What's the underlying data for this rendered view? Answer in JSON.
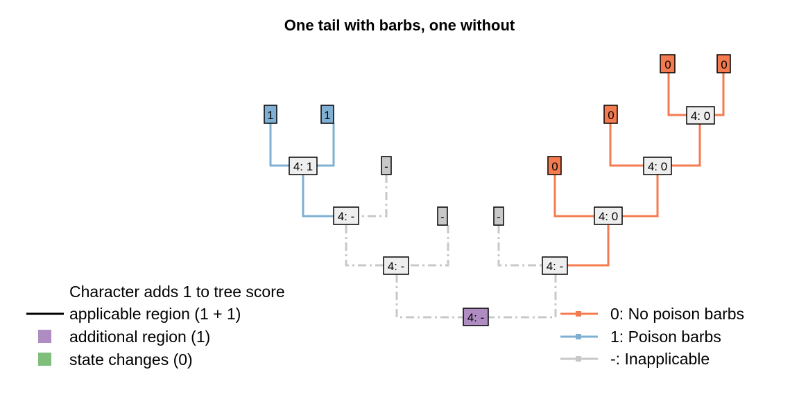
{
  "title": "One tail with barbs, one without",
  "colors": {
    "state0": "#F47B4F",
    "state1": "#7FB0D3",
    "inapplicable": "#C8C8C8",
    "node_fill": "#EEEEEE",
    "additional_region": "#AF8DC3",
    "state_changes": "#7FBF7B",
    "applicable_line": "#000000"
  },
  "tips": [
    {
      "id": "t1",
      "label": "1",
      "state": "1"
    },
    {
      "id": "t2",
      "label": "1",
      "state": "1"
    },
    {
      "id": "t3",
      "label": "-",
      "state": "-"
    },
    {
      "id": "t4",
      "label": "-",
      "state": "-"
    },
    {
      "id": "t5",
      "label": "-",
      "state": "-"
    },
    {
      "id": "t6",
      "label": "0",
      "state": "0"
    },
    {
      "id": "t7",
      "label": "0",
      "state": "0"
    },
    {
      "id": "t8",
      "label": "0",
      "state": "0"
    },
    {
      "id": "t9",
      "label": "0",
      "state": "0"
    }
  ],
  "internal_nodes": [
    {
      "id": "n_a",
      "label": "4: 1"
    },
    {
      "id": "n_b",
      "label": "4: -"
    },
    {
      "id": "n_c",
      "label": "4: -"
    },
    {
      "id": "n_root",
      "label": "4: -"
    },
    {
      "id": "n_d",
      "label": "4: -"
    },
    {
      "id": "n_e",
      "label": "4: 0"
    },
    {
      "id": "n_f",
      "label": "4: 0"
    },
    {
      "id": "n_g",
      "label": "4: 0"
    }
  ],
  "legend_left": {
    "heading": "Character adds 1 to tree score",
    "items": [
      {
        "label": "applicable region (1 + 1)",
        "symbol": "line"
      },
      {
        "label": "additional region (1)",
        "symbol": "square"
      },
      {
        "label": "state changes (0)",
        "symbol": "square"
      }
    ]
  },
  "legend_right": {
    "items": [
      {
        "label": "0: No poison barbs",
        "state": "0"
      },
      {
        "label": "1: Poison barbs",
        "state": "1"
      },
      {
        "label": "-: Inapplicable",
        "state": "-"
      }
    ]
  }
}
